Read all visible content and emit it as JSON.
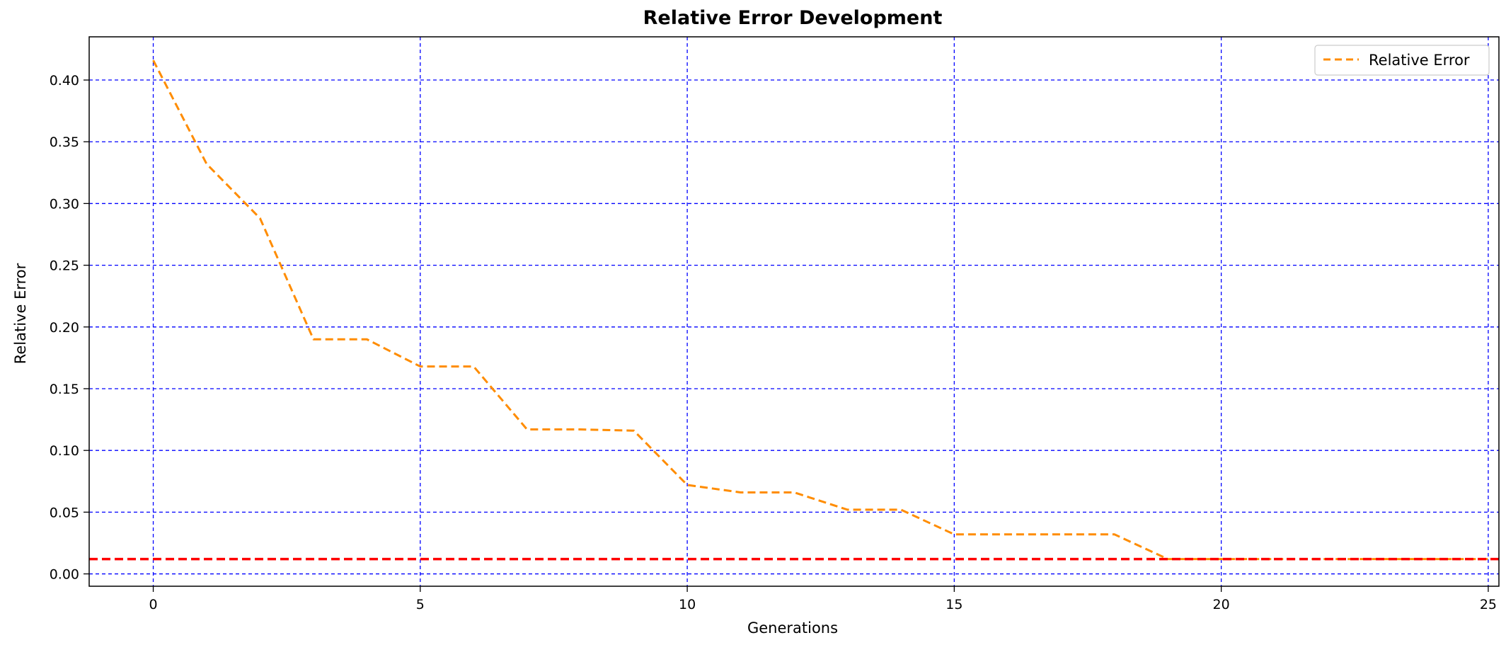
{
  "chart_data": {
    "type": "line",
    "title": "Relative Error Development",
    "xlabel": "Generations",
    "ylabel": "Relative Error",
    "xlim": [
      -1.2,
      25.2
    ],
    "ylim": [
      -0.01,
      0.435
    ],
    "xticks": [
      0,
      5,
      10,
      15,
      20,
      25
    ],
    "xtick_labels": [
      "0",
      "5",
      "10",
      "15",
      "20",
      "25"
    ],
    "yticks": [
      0.0,
      0.05,
      0.1,
      0.15,
      0.2,
      0.25,
      0.3,
      0.35,
      0.4
    ],
    "ytick_labels": [
      "0.00",
      "0.05",
      "0.10",
      "0.15",
      "0.20",
      "0.25",
      "0.30",
      "0.35",
      "0.40"
    ],
    "grid": true,
    "grid_color": "#0000ff",
    "legend_position": "top-right",
    "series": [
      {
        "name": "Relative Error",
        "color": "#ff8c00",
        "style": "dashed",
        "x": [
          0,
          1,
          2,
          3,
          4,
          5,
          6,
          7,
          8,
          9,
          10,
          11,
          12,
          13,
          14,
          15,
          16,
          17,
          18,
          19,
          20,
          21,
          22,
          23,
          24,
          25
        ],
        "y": [
          0.416,
          0.332,
          0.288,
          0.19,
          0.19,
          0.168,
          0.168,
          0.117,
          0.117,
          0.116,
          0.072,
          0.066,
          0.066,
          0.052,
          0.052,
          0.032,
          0.032,
          0.032,
          0.032,
          0.012,
          0.012,
          0.012,
          0.012,
          0.012,
          0.012,
          0.012
        ]
      }
    ],
    "reference_line": {
      "y": 0.012,
      "color": "#ff0000",
      "style": "dashed"
    }
  }
}
